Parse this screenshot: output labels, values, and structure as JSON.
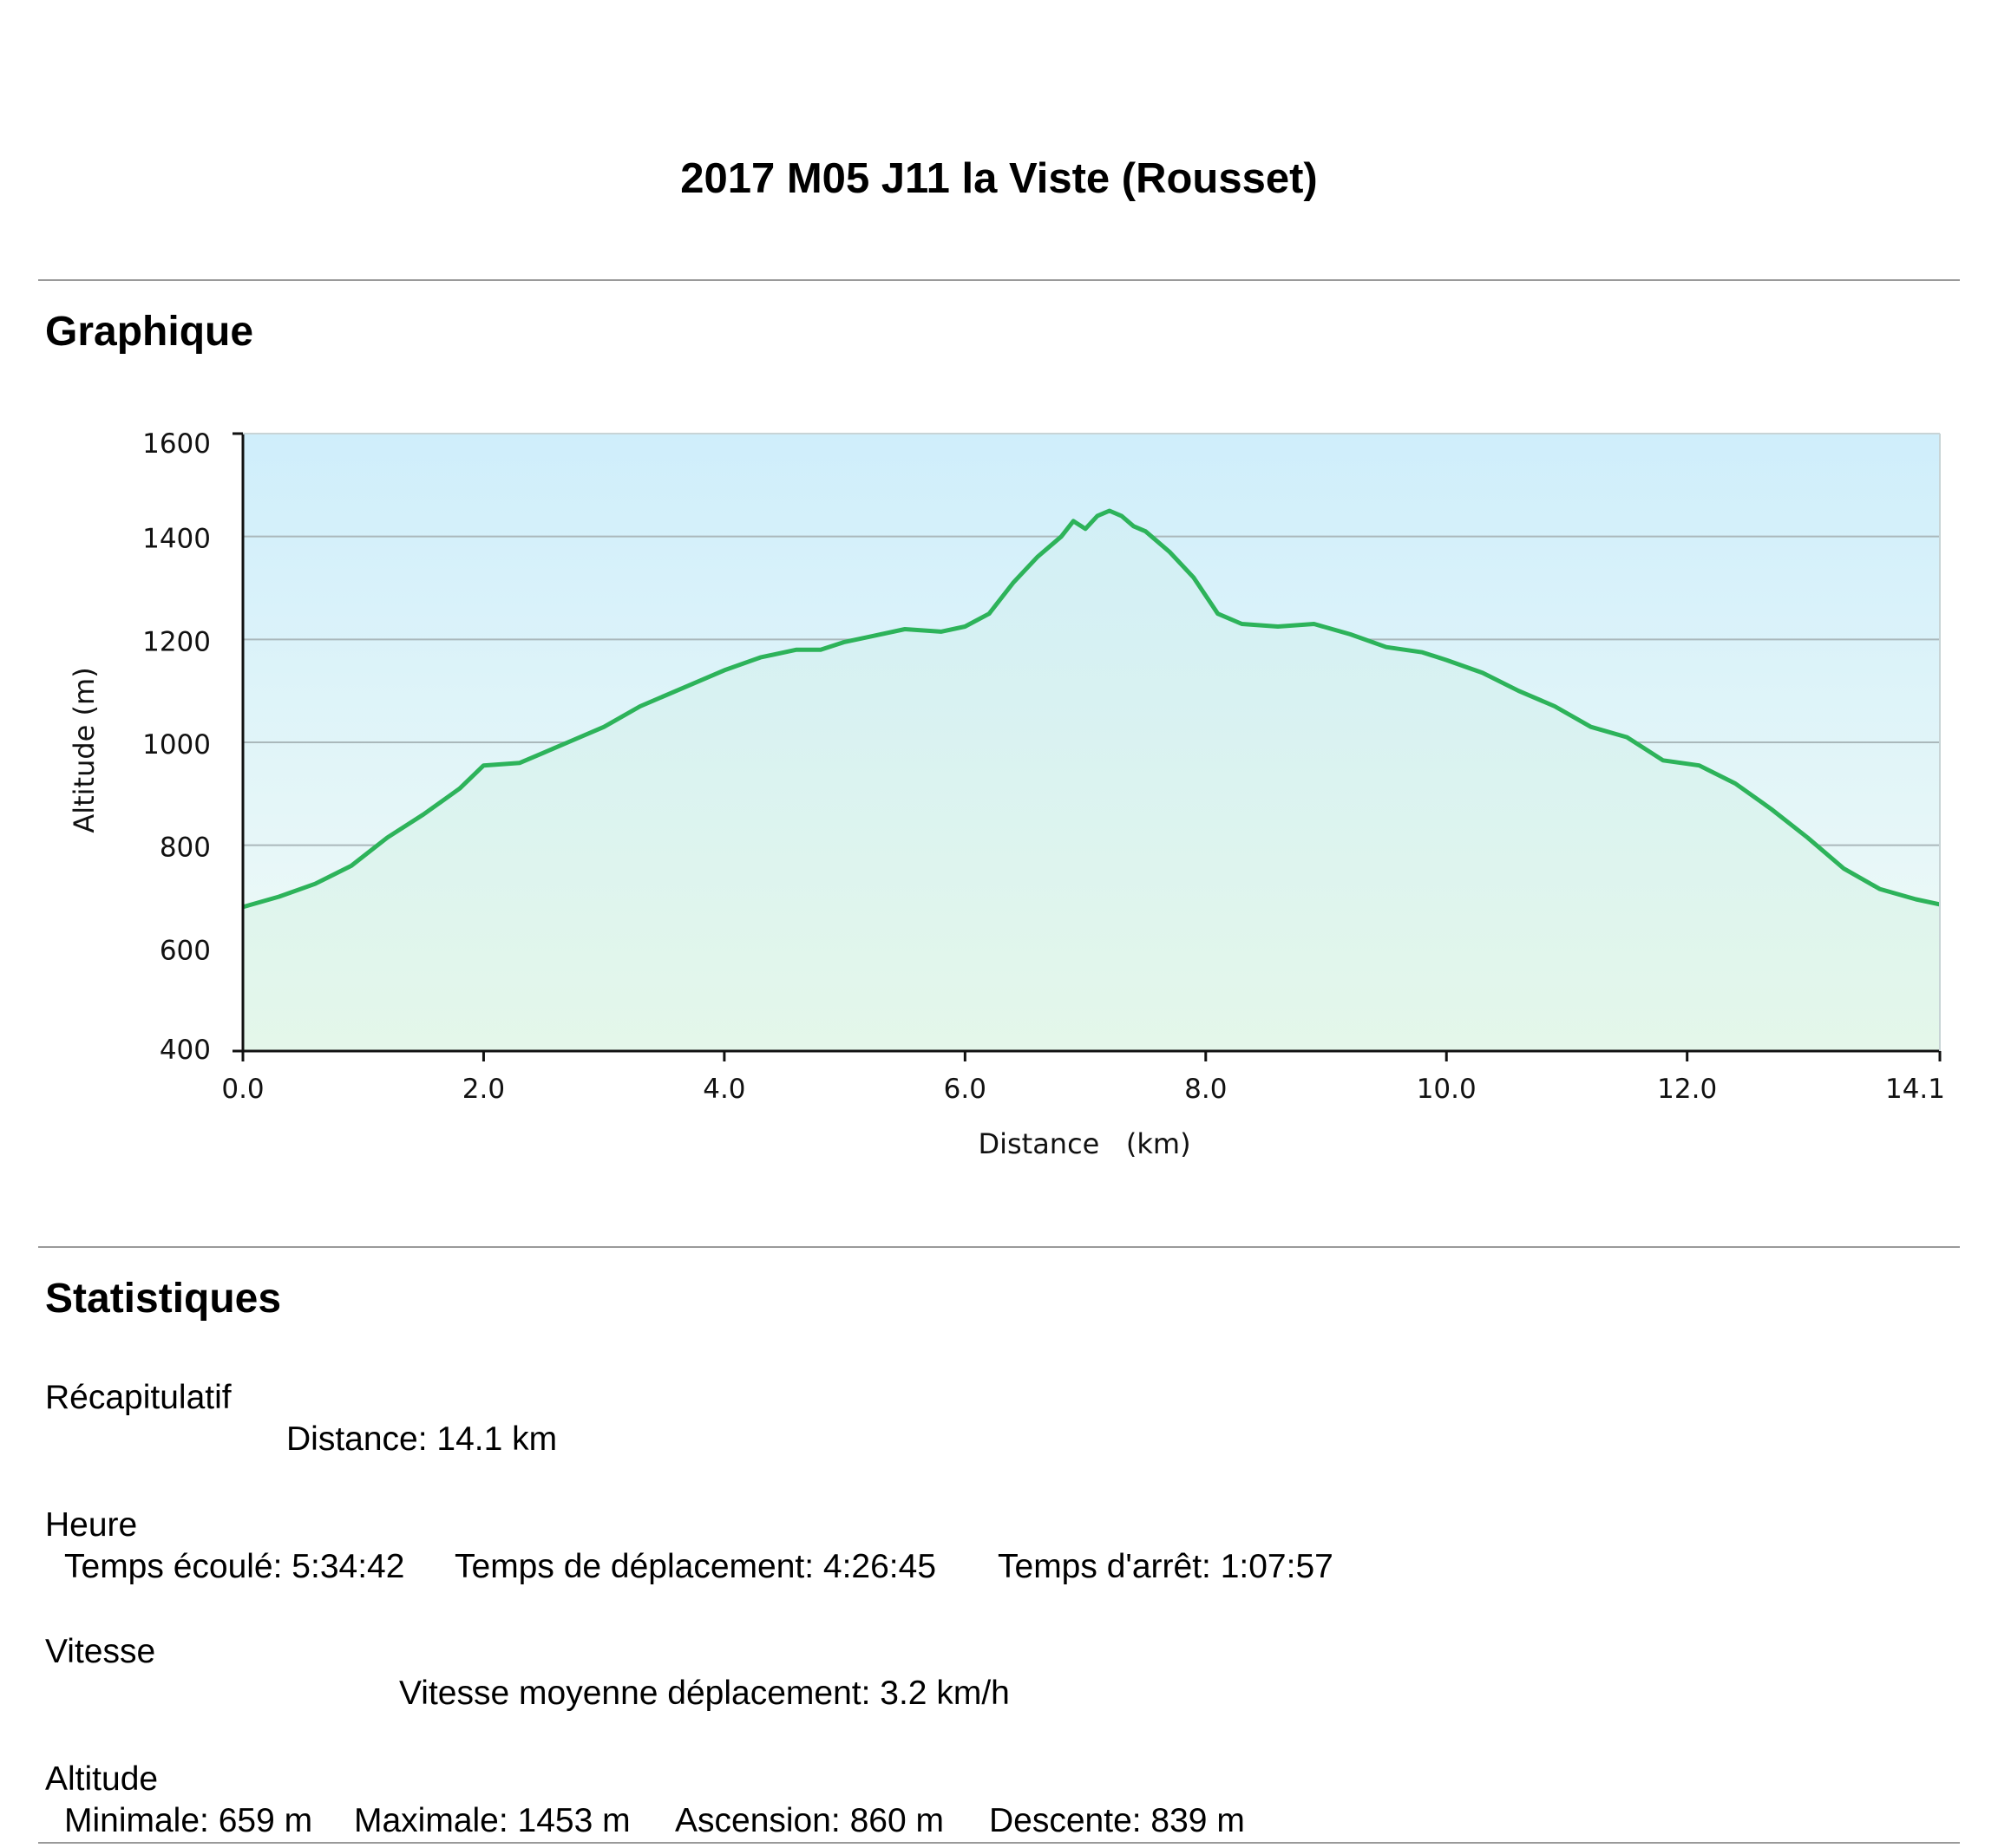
{
  "title": "2017 M05 J11 la Viste (Rousset)",
  "sections": {
    "graph_heading": "Graphique",
    "stats_heading": "Statistiques"
  },
  "stats": {
    "summary": {
      "label": "Récapitulatif",
      "distance": "Distance: 14.1 km"
    },
    "time": {
      "label": "Heure",
      "elapsed": "Temps écoulé: 5:34:42",
      "moving": "Temps de déplacement: 4:26:45",
      "stopped": "Temps d'arrêt: 1:07:57"
    },
    "speed": {
      "label": "Vitesse",
      "avg_moving": "Vitesse moyenne déplacement: 3.2 km/h"
    },
    "altitude": {
      "label": "Altitude",
      "min": "Minimale: 659 m",
      "max": "Maximale: 1453 m",
      "ascent": "Ascension: 860 m",
      "descent": "Descente: 839 m"
    }
  },
  "colors": {
    "line": "#2db35a",
    "fill_top": "#d2eff6",
    "fill_bottom": "#e4f7ea",
    "sky_top": "#cfeefb",
    "sky_bottom": "#f2fbf6",
    "grid": "#aab8bb"
  },
  "chart_data": {
    "type": "area",
    "xlabel": "Distance   (km)",
    "ylabel": "Altitude (m)",
    "xlim": [
      0,
      14.1
    ],
    "ylim": [
      400,
      1600
    ],
    "xticks": [
      "0.0",
      "2.0",
      "4.0",
      "6.0",
      "8.0",
      "10.0",
      "12.0",
      "14.1"
    ],
    "xtick_values": [
      0,
      2,
      4,
      6,
      8,
      10,
      12,
      14.1
    ],
    "yticks": [
      "1600",
      "1400",
      "1200",
      "1000",
      "800",
      "600",
      "400"
    ],
    "ytick_values": [
      1600,
      1400,
      1200,
      1000,
      800,
      600,
      400
    ],
    "grid": true,
    "x": [
      0,
      0.3,
      0.6,
      0.9,
      1.2,
      1.5,
      1.8,
      2.0,
      2.3,
      2.5,
      2.7,
      3.0,
      3.3,
      3.6,
      4.0,
      4.3,
      4.6,
      4.8,
      5.0,
      5.2,
      5.5,
      5.8,
      6.0,
      6.2,
      6.4,
      6.6,
      6.8,
      6.9,
      7.0,
      7.1,
      7.2,
      7.3,
      7.4,
      7.5,
      7.7,
      7.9,
      8.1,
      8.3,
      8.6,
      8.9,
      9.2,
      9.5,
      9.8,
      10.0,
      10.3,
      10.6,
      10.9,
      11.2,
      11.5,
      11.8,
      12.1,
      12.4,
      12.7,
      13.0,
      13.3,
      13.6,
      13.9,
      14.1
    ],
    "y": [
      680,
      700,
      725,
      760,
      815,
      860,
      910,
      955,
      960,
      980,
      1000,
      1030,
      1070,
      1100,
      1140,
      1165,
      1180,
      1180,
      1195,
      1205,
      1220,
      1215,
      1225,
      1250,
      1310,
      1360,
      1400,
      1430,
      1415,
      1440,
      1450,
      1440,
      1420,
      1410,
      1370,
      1320,
      1250,
      1230,
      1225,
      1230,
      1210,
      1185,
      1175,
      1160,
      1135,
      1100,
      1070,
      1030,
      1010,
      965,
      955,
      920,
      870,
      815,
      755,
      715,
      695,
      685
    ]
  }
}
